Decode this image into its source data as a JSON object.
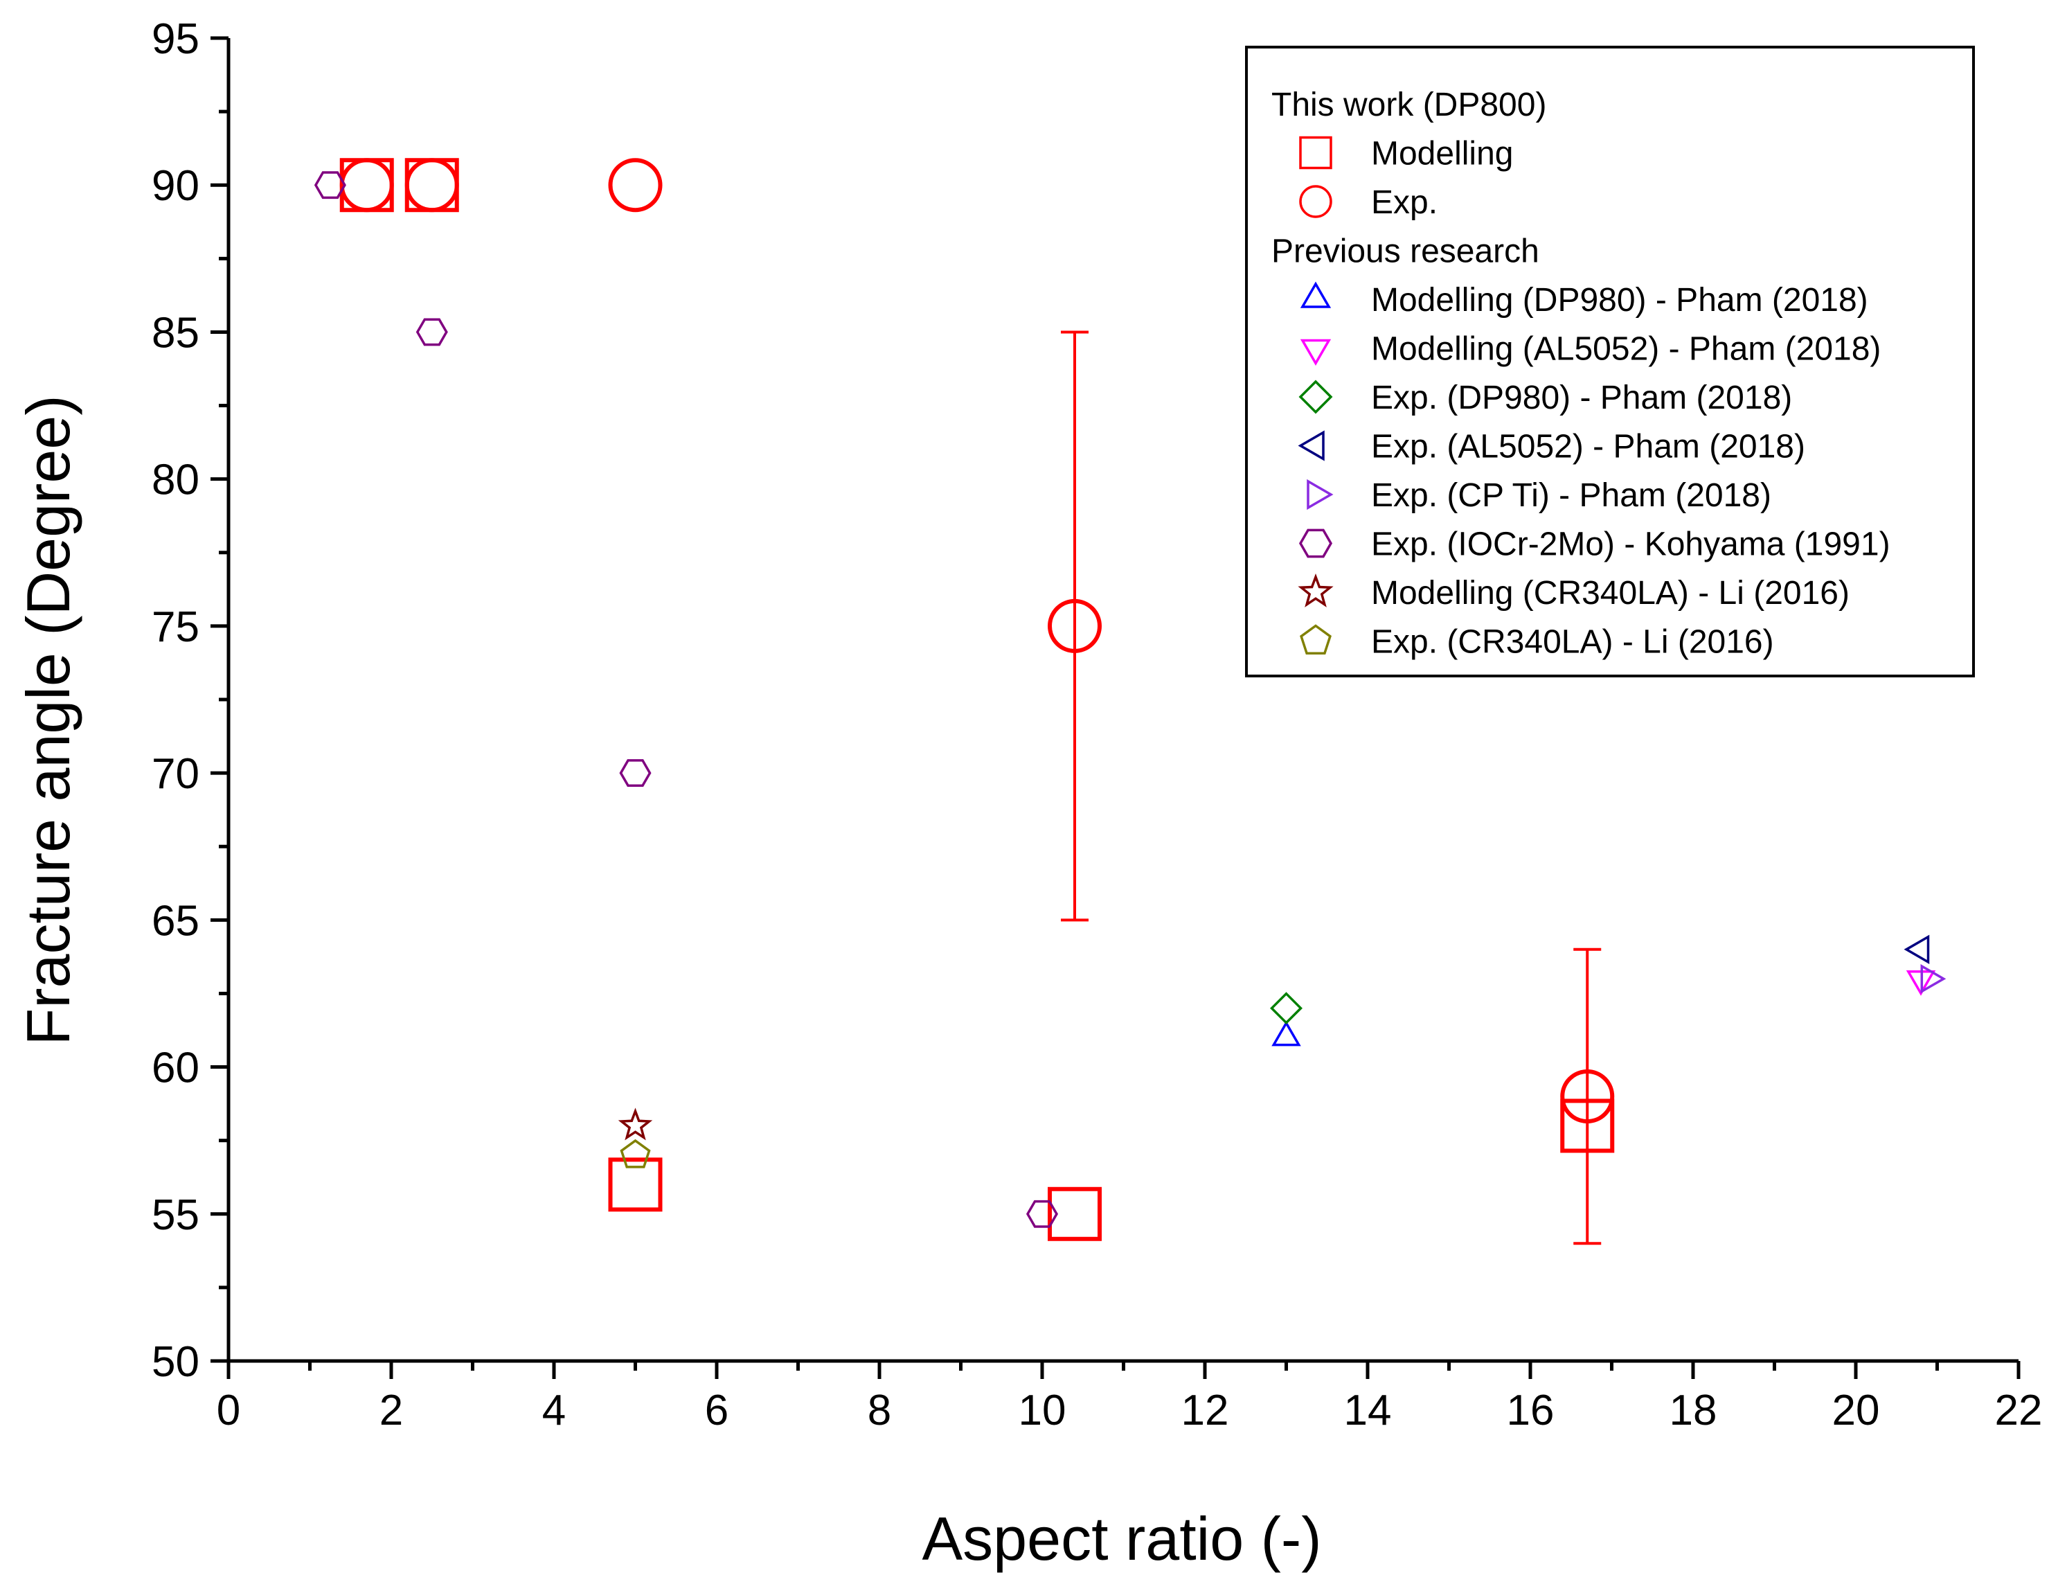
{
  "chart_data": {
    "type": "scatter",
    "xlabel": "Aspect ratio (-)",
    "ylabel": "Fracture angle (Degree)",
    "xlim": [
      0,
      22
    ],
    "ylim": [
      50,
      95
    ],
    "xticks": [
      "0",
      "2",
      "4",
      "6",
      "8",
      "10",
      "12",
      "14",
      "16",
      "18",
      "20",
      "22"
    ],
    "yticks": [
      "50",
      "55",
      "60",
      "65",
      "70",
      "75",
      "80",
      "85",
      "90",
      "95"
    ],
    "legend": {
      "position": "top-right",
      "groups": [
        "This work (DP800)",
        "Previous research"
      ]
    },
    "series": [
      {
        "name": "Modelling",
        "group": "This work (DP800)",
        "marker": "square",
        "color": "#ff0000",
        "size": "large",
        "points": [
          {
            "x": 1.7,
            "y": 90
          },
          {
            "x": 2.5,
            "y": 90
          },
          {
            "x": 5.0,
            "y": 56
          },
          {
            "x": 10.4,
            "y": 55
          },
          {
            "x": 16.7,
            "y": 58
          }
        ]
      },
      {
        "name": "Exp.",
        "group": "This work (DP800)",
        "marker": "circle",
        "color": "#ff0000",
        "size": "large",
        "points": [
          {
            "x": 1.7,
            "y": 90
          },
          {
            "x": 2.5,
            "y": 90
          },
          {
            "x": 5.0,
            "y": 90
          },
          {
            "x": 10.4,
            "y": 75,
            "yerr": [
              65,
              85
            ]
          },
          {
            "x": 16.7,
            "y": 59,
            "yerr": [
              54,
              64
            ]
          }
        ]
      },
      {
        "name": "Modelling (DP980) - Pham (2018)",
        "group": "Previous research",
        "marker": "triangle-up",
        "color": "#0000ff",
        "size": "small",
        "points": [
          {
            "x": 13.0,
            "y": 61
          }
        ]
      },
      {
        "name": "Modelling (AL5052) - Pham (2018)",
        "group": "Previous research",
        "marker": "triangle-down",
        "color": "#ff00ff",
        "size": "small",
        "points": [
          {
            "x": 20.8,
            "y": 63
          }
        ]
      },
      {
        "name": "Exp. (DP980) - Pham (2018)",
        "group": "Previous research",
        "marker": "diamond",
        "color": "#008000",
        "size": "small",
        "points": [
          {
            "x": 13.0,
            "y": 62
          }
        ]
      },
      {
        "name": "Exp. (AL5052) - Pham (2018)",
        "group": "Previous research",
        "marker": "triangle-left",
        "color": "#000080",
        "size": "small",
        "points": [
          {
            "x": 20.8,
            "y": 64
          }
        ]
      },
      {
        "name": "Exp. (CP Ti) - Pham (2018)",
        "group": "Previous research",
        "marker": "triangle-right",
        "color": "#8a2be2",
        "size": "small",
        "points": [
          {
            "x": 20.9,
            "y": 63
          }
        ]
      },
      {
        "name": "Exp. (IOCr-2Mo) - Kohyama (1991)",
        "group": "Previous research",
        "marker": "hexagon",
        "color": "#800080",
        "size": "small",
        "points": [
          {
            "x": 1.25,
            "y": 90
          },
          {
            "x": 2.5,
            "y": 85
          },
          {
            "x": 5.0,
            "y": 70
          },
          {
            "x": 10.0,
            "y": 55
          }
        ]
      },
      {
        "name": "Modelling (CR340LA) - Li (2016)",
        "group": "Previous research",
        "marker": "star",
        "color": "#800000",
        "size": "small",
        "points": [
          {
            "x": 5.0,
            "y": 58
          }
        ]
      },
      {
        "name": "Exp. (CR340LA) - Li (2016)",
        "group": "Previous research",
        "marker": "pentagon",
        "color": "#808000",
        "size": "small",
        "points": [
          {
            "x": 5.0,
            "y": 57
          }
        ]
      }
    ]
  }
}
